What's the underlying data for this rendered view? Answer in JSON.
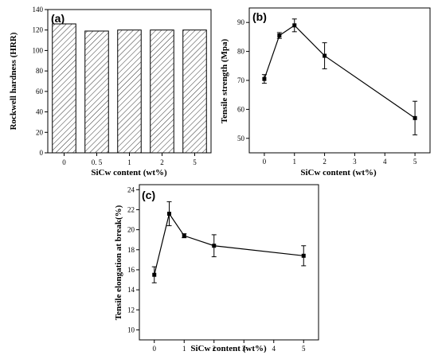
{
  "chart_data": [
    {
      "type": "bar",
      "panel_label": "(a)",
      "title": "",
      "xlabel": "SiCw content (wt%)",
      "ylabel": "Rockwell hardness (HRR)",
      "categories": [
        "0",
        "0. 5",
        "1",
        "2",
        "5"
      ],
      "values": [
        126,
        119,
        120,
        120,
        120
      ],
      "ylim": [
        0,
        140
      ],
      "yticks": [
        "0",
        "20",
        "40",
        "60",
        "80",
        "100",
        "120",
        "140"
      ],
      "grid": false,
      "pattern": "diagonal-hatch"
    },
    {
      "type": "line",
      "panel_label": "(b)",
      "title": "",
      "xlabel": "SiCw content (wt%)",
      "ylabel": "Tensile strength (Mpa)",
      "x": [
        0,
        0.5,
        1,
        2,
        5
      ],
      "y": [
        70.5,
        85.5,
        89,
        78.5,
        57
      ],
      "yerr": [
        1.5,
        1.0,
        2.2,
        4.5,
        5.8
      ],
      "xlim": [
        -0.5,
        5.5
      ],
      "ylim": [
        45,
        95
      ],
      "xticks": [
        "0",
        "1",
        "2",
        "3",
        "4",
        "5"
      ],
      "yticks": [
        "50",
        "60",
        "70",
        "80",
        "90"
      ],
      "grid": false
    },
    {
      "type": "line",
      "panel_label": "(c)",
      "title": "",
      "xlabel": "SiCw content (wt%)",
      "ylabel": "Tensile elongation at break(%)",
      "x": [
        0,
        0.5,
        1,
        2,
        5
      ],
      "y": [
        15.5,
        21.6,
        19.4,
        18.4,
        17.4
      ],
      "yerr": [
        0.8,
        1.2,
        0.2,
        1.1,
        1.0
      ],
      "xlim": [
        -0.5,
        5.5
      ],
      "ylim": [
        9,
        24.5
      ],
      "xticks": [
        "0",
        "1",
        "2",
        "3",
        "4",
        "5"
      ],
      "yticks": [
        "10",
        "12",
        "14",
        "16",
        "18",
        "20",
        "22",
        "24"
      ],
      "grid": false
    }
  ]
}
